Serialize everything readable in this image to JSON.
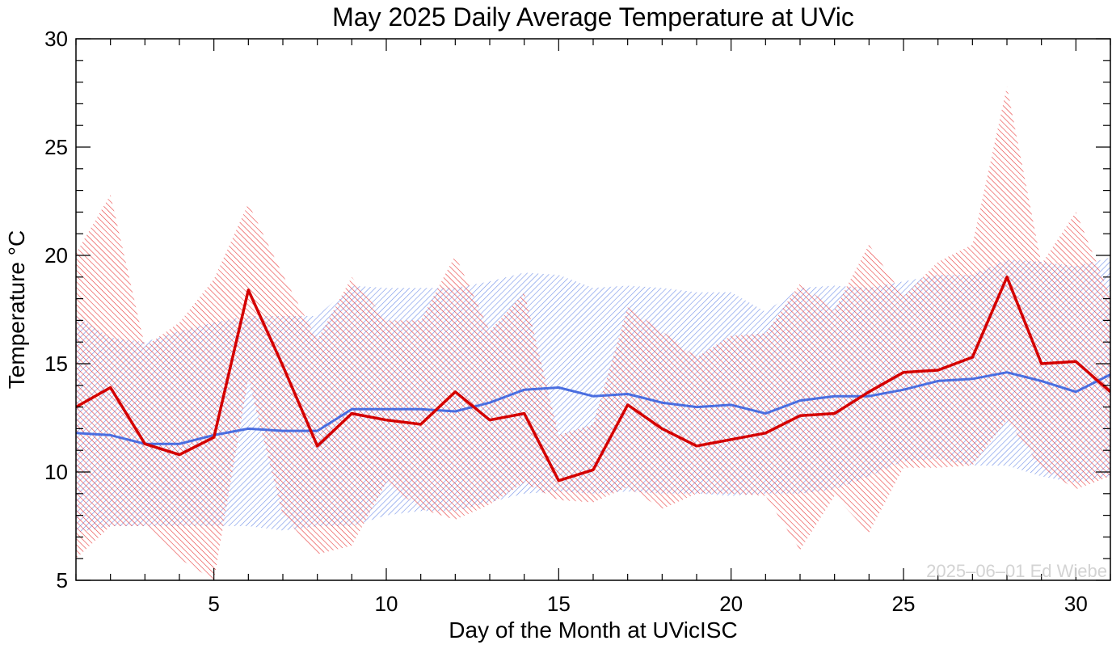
{
  "chart_data": {
    "type": "line",
    "title": "May 2025 Daily Average Temperature at UVic",
    "xlabel": "Day of the Month at UVicISC",
    "ylabel": "Temperature °C",
    "xlim": [
      1,
      31
    ],
    "ylim": [
      5,
      30
    ],
    "xticks": [
      5,
      10,
      15,
      20,
      25,
      30
    ],
    "yticks": [
      5,
      10,
      15,
      20,
      25,
      30
    ],
    "grid": false,
    "credit": "2025–06–01 Ed Wiebe",
    "x": [
      1,
      2,
      3,
      4,
      5,
      6,
      7,
      8,
      9,
      10,
      11,
      12,
      13,
      14,
      15,
      16,
      17,
      18,
      19,
      20,
      21,
      22,
      23,
      24,
      25,
      26,
      27,
      28,
      29,
      30,
      31
    ],
    "colors": {
      "current": "#d40000",
      "normal": "#4a6ee0",
      "current_band": "#e83a3a",
      "normal_band": "#6f8fe8"
    },
    "series": [
      {
        "key": "current",
        "values": [
          13.0,
          13.9,
          11.3,
          10.8,
          11.6,
          18.4,
          14.9,
          11.2,
          12.7,
          12.4,
          12.2,
          13.7,
          12.4,
          12.7,
          9.6,
          10.1,
          13.1,
          12.0,
          11.2,
          11.5,
          11.8,
          12.6,
          12.7,
          13.7,
          14.6,
          14.7,
          15.3,
          19.0,
          15.0,
          15.1,
          13.7
        ]
      },
      {
        "key": "normal",
        "values": [
          11.8,
          11.7,
          11.3,
          11.3,
          11.7,
          12.0,
          11.9,
          11.9,
          12.9,
          12.9,
          12.9,
          12.8,
          13.2,
          13.8,
          13.9,
          13.5,
          13.6,
          13.2,
          13.0,
          13.1,
          12.7,
          13.3,
          13.5,
          13.5,
          13.8,
          14.2,
          14.3,
          14.6,
          14.2,
          13.7,
          14.5
        ]
      }
    ],
    "bands": [
      {
        "key": "normal",
        "lower": [
          7.2,
          7.5,
          7.5,
          7.5,
          7.5,
          7.5,
          7.3,
          7.5,
          7.5,
          8.0,
          8.2,
          8.2,
          8.6,
          9.0,
          9.1,
          9.0,
          9.1,
          9.0,
          9.0,
          8.9,
          9.0,
          9.0,
          9.2,
          9.8,
          10.5,
          10.6,
          10.3,
          10.3,
          9.8,
          9.5,
          9.8
        ],
        "upper": [
          17.2,
          16.2,
          16.0,
          16.5,
          16.9,
          17.2,
          17.2,
          17.2,
          18.6,
          18.5,
          18.5,
          18.5,
          18.8,
          19.2,
          19.1,
          18.5,
          18.6,
          18.5,
          18.3,
          18.3,
          17.4,
          18.5,
          18.6,
          18.5,
          18.8,
          19.1,
          19.1,
          19.8,
          19.7,
          19.5,
          19.9
        ]
      },
      {
        "key": "current",
        "lower": [
          6.0,
          7.5,
          7.5,
          6.0,
          5.0,
          14.3,
          8.0,
          6.2,
          6.6,
          9.5,
          8.3,
          7.8,
          8.5,
          9.5,
          8.7,
          8.6,
          9.3,
          8.3,
          9.0,
          9.0,
          8.9,
          6.4,
          8.9,
          7.2,
          10.2,
          10.2,
          10.3,
          12.4,
          10.2,
          9.2,
          9.8
        ],
        "upper": [
          20.1,
          22.8,
          15.8,
          16.9,
          18.9,
          22.4,
          19.1,
          16.1,
          19.0,
          17.0,
          17.0,
          20.0,
          16.5,
          18.3,
          11.7,
          12.2,
          17.6,
          16.5,
          15.3,
          16.3,
          16.4,
          18.7,
          17.5,
          20.5,
          18.1,
          19.7,
          20.5,
          27.8,
          19.6,
          22.0,
          18.1
        ]
      }
    ]
  }
}
